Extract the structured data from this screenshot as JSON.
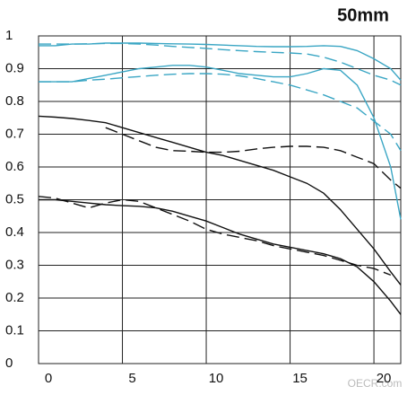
{
  "chart_data": {
    "type": "line",
    "title": "50mm",
    "watermark": "OECR.com",
    "x": [
      0,
      1,
      2,
      3,
      4,
      5,
      6,
      7,
      8,
      9,
      10,
      11,
      12,
      13,
      14,
      15,
      16,
      17,
      18,
      19,
      20,
      21,
      21.6
    ],
    "xlim": [
      0,
      21.6
    ],
    "xticks": [
      0,
      5,
      10,
      15,
      20
    ],
    "ylim": [
      0,
      1
    ],
    "yticks": [
      0,
      0.1,
      0.2,
      0.3,
      0.4,
      0.5,
      0.6,
      0.7,
      0.8,
      0.9,
      1
    ],
    "grid": true,
    "series": [
      {
        "color": "#3aa6c4",
        "dashed": false,
        "values": [
          0.97,
          0.97,
          0.975,
          0.975,
          0.978,
          0.978,
          0.978,
          0.977,
          0.976,
          0.975,
          0.974,
          0.972,
          0.97,
          0.968,
          0.967,
          0.967,
          0.968,
          0.97,
          0.968,
          0.955,
          0.93,
          0.9,
          0.865
        ]
      },
      {
        "color": "#3aa6c4",
        "dashed": true,
        "values": [
          0.975,
          0.975,
          0.975,
          0.976,
          0.977,
          0.977,
          0.975,
          0.972,
          0.968,
          0.965,
          0.962,
          0.958,
          0.955,
          0.952,
          0.95,
          0.948,
          0.945,
          0.935,
          0.92,
          0.9,
          0.88,
          0.865,
          0.85
        ]
      },
      {
        "color": "#3aa6c4",
        "dashed": false,
        "values": [
          0.86,
          0.86,
          0.86,
          0.87,
          0.88,
          0.89,
          0.9,
          0.905,
          0.91,
          0.91,
          0.905,
          0.895,
          0.885,
          0.88,
          0.875,
          0.875,
          0.885,
          0.9,
          0.895,
          0.85,
          0.75,
          0.6,
          0.44
        ]
      },
      {
        "color": "#3aa6c4",
        "dashed": true,
        "values": [
          0.86,
          0.86,
          0.86,
          0.865,
          0.868,
          0.872,
          0.876,
          0.88,
          0.883,
          0.885,
          0.885,
          0.883,
          0.878,
          0.87,
          0.86,
          0.85,
          0.835,
          0.82,
          0.8,
          0.78,
          0.74,
          0.7,
          0.65
        ]
      },
      {
        "color": "#111111",
        "dashed": false,
        "values": [
          0.755,
          0.752,
          0.748,
          0.742,
          0.735,
          0.72,
          0.705,
          0.69,
          0.675,
          0.66,
          0.645,
          0.635,
          0.62,
          0.605,
          0.59,
          0.57,
          0.55,
          0.52,
          0.47,
          0.41,
          0.35,
          0.28,
          0.24
        ]
      },
      {
        "color": "#111111",
        "dashed": true,
        "values": [
          null,
          null,
          null,
          null,
          0.72,
          0.7,
          0.68,
          0.66,
          0.65,
          0.648,
          0.645,
          0.645,
          0.648,
          0.655,
          0.66,
          0.663,
          0.663,
          0.66,
          0.65,
          0.63,
          0.61,
          0.56,
          0.535
        ]
      },
      {
        "color": "#111111",
        "dashed": false,
        "values": [
          0.5,
          0.5,
          0.495,
          0.49,
          0.485,
          0.482,
          0.48,
          0.475,
          0.465,
          0.45,
          0.435,
          0.415,
          0.395,
          0.38,
          0.365,
          0.355,
          0.345,
          0.335,
          0.32,
          0.295,
          0.25,
          0.19,
          0.15
        ]
      },
      {
        "color": "#111111",
        "dashed": true,
        "values": [
          0.51,
          0.505,
          0.49,
          0.475,
          0.49,
          0.5,
          0.495,
          0.475,
          0.455,
          0.435,
          0.41,
          0.395,
          0.385,
          0.375,
          0.36,
          0.35,
          0.34,
          0.33,
          0.315,
          0.3,
          0.29,
          0.27,
          null
        ]
      }
    ]
  }
}
